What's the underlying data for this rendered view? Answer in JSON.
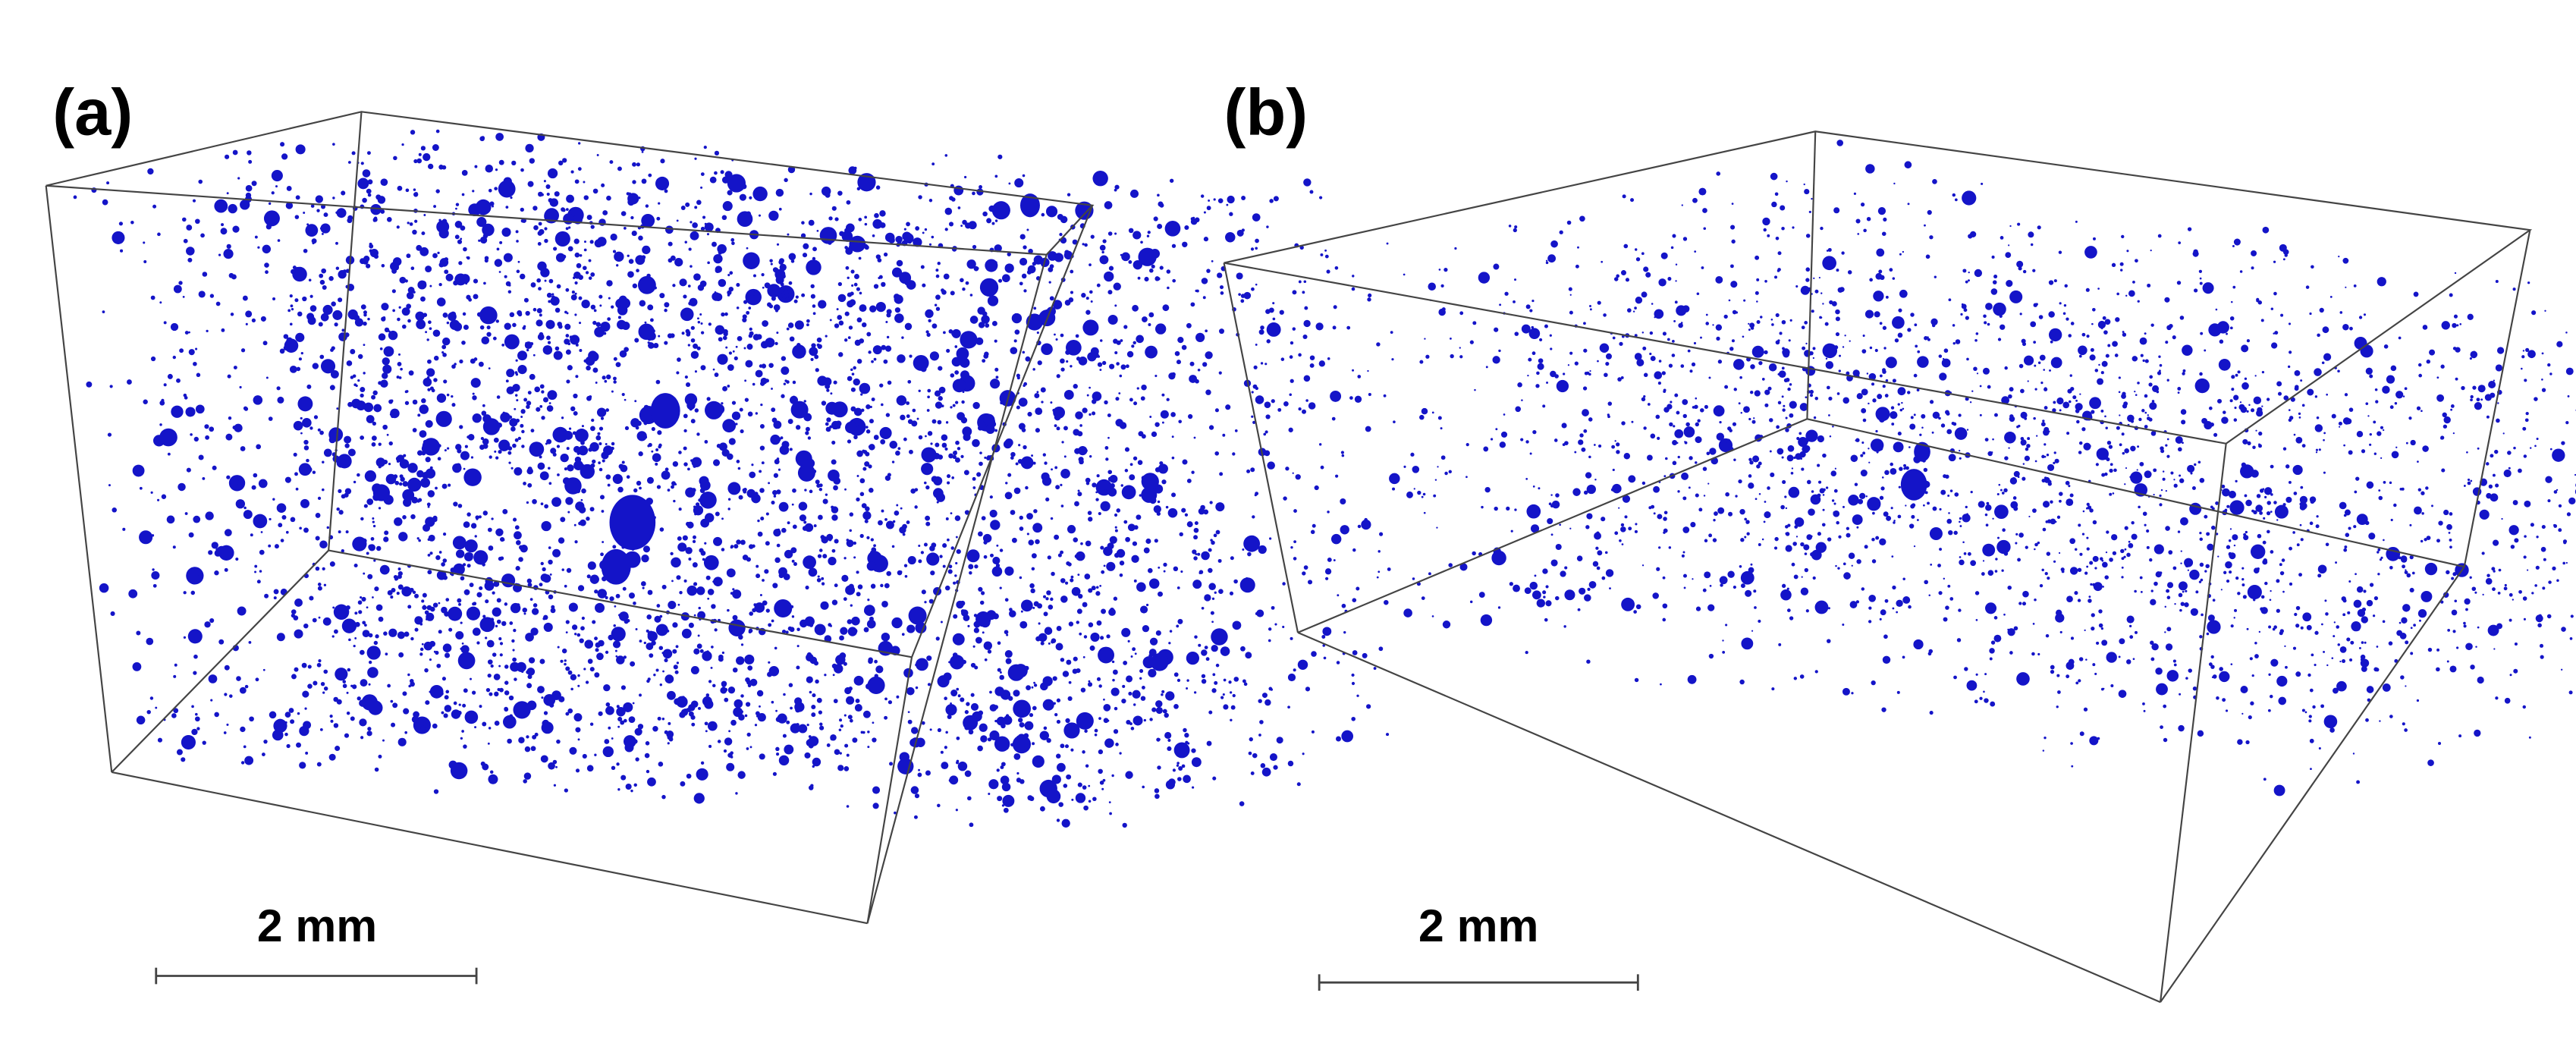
{
  "panels": [
    {
      "label": "(a)",
      "scale_bar": "2 mm"
    },
    {
      "label": "(b)",
      "scale_bar": "2 mm"
    }
  ]
}
